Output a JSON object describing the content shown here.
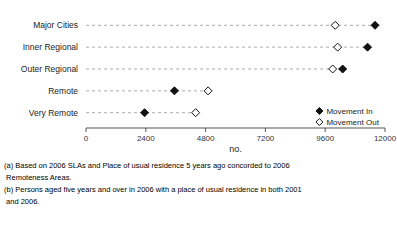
{
  "chart_data": {
    "type": "dot",
    "categories": [
      "Very Remote",
      "Remote",
      "Outer Regional",
      "Inner Regional",
      "Major Cities"
    ],
    "series": [
      {
        "name": "Movement In",
        "color": "#111111",
        "marker": "diamond",
        "values": [
          2350,
          3550,
          10300,
          11300,
          11600
        ]
      },
      {
        "name": "Movement Out",
        "color": "#ffffff",
        "marker": "diamond",
        "values": [
          4400,
          4900,
          9900,
          10100,
          10000
        ]
      }
    ],
    "xlim": [
      0,
      12000
    ],
    "xticks": [
      0,
      2400,
      4800,
      7200,
      9600,
      12000
    ],
    "xlabel": "no.",
    "grid": false,
    "legend": "lower right",
    "annotations": [
      "(a) Based on 2006 SLAs and Place of usual residence 5 years ago concorded to 2006",
      " Remoteness Areas.",
      "(b) Persons aged five years and over in 2006 with a place of usual residence in both 2001",
      " and 2006."
    ]
  }
}
